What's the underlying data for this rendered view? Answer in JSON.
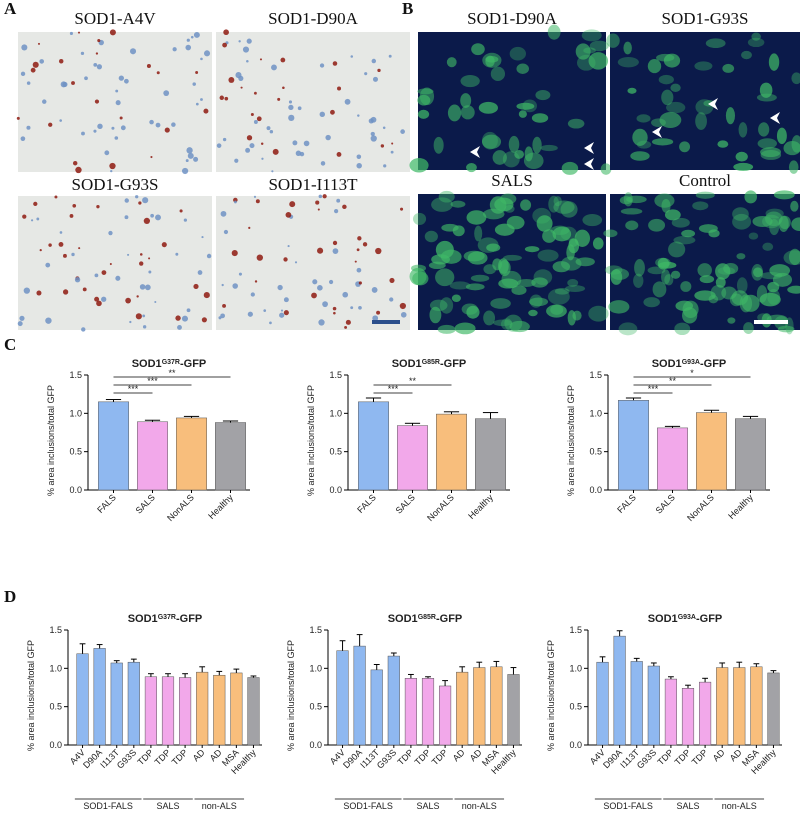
{
  "panels": [
    {
      "label": "A",
      "captions": [
        "SOD1-A4V",
        "SOD1-D90A",
        "SOD1-G93S",
        "SOD1-I113T"
      ]
    },
    {
      "label": "B",
      "captions": [
        "SOD1-D90A",
        "SOD1-G93S",
        "SALS",
        "Control"
      ]
    },
    {
      "label": "C"
    },
    {
      "label": "D"
    }
  ],
  "chart_data": [
    {
      "type": "bar",
      "title": [
        "SOD1",
        "G37R",
        "-GFP"
      ],
      "ylabel": "% area inclusions/total GFP",
      "categories": [
        "FALS",
        "SALS",
        "NonALS",
        "Healthy"
      ],
      "values": [
        1.15,
        0.89,
        0.94,
        0.88
      ],
      "errors": [
        0.03,
        0.02,
        0.02,
        0.02
      ],
      "colors": [
        "#8fb8f0",
        "#f2a8ea",
        "#f8be7c",
        "#a2a2a6"
      ],
      "ylim": [
        0,
        1.5
      ],
      "yticks": [
        {
          "value": 0,
          "label": "0.0"
        },
        0.5,
        {
          "value": 1,
          "label": "1.0"
        },
        1.5
      ],
      "significance": [
        {
          "between": [
            0,
            1
          ],
          "label": "***"
        },
        {
          "between": [
            0,
            2
          ],
          "label": "***"
        },
        {
          "between": [
            0,
            3
          ],
          "label": "**"
        }
      ]
    },
    {
      "type": "bar",
      "title": [
        "SOD1",
        "G85R",
        "-GFP"
      ],
      "ylabel": "% area inclusions/total GFP",
      "categories": [
        "FALS",
        "SALS",
        "NonALS",
        "Healthy"
      ],
      "values": [
        1.15,
        0.84,
        0.99,
        0.93
      ],
      "errors": [
        0.05,
        0.03,
        0.03,
        0.08
      ],
      "colors": [
        "#8fb8f0",
        "#f2a8ea",
        "#f8be7c",
        "#a2a2a6"
      ],
      "ylim": [
        0,
        1.5
      ],
      "yticks": [
        {
          "value": 0,
          "label": "0.0"
        },
        0.5,
        {
          "value": 1,
          "label": "1.0"
        },
        1.5
      ],
      "significance": [
        {
          "between": [
            0,
            1
          ],
          "label": "***"
        },
        {
          "between": [
            0,
            2
          ],
          "label": "**"
        }
      ]
    },
    {
      "type": "bar",
      "title": [
        "SOD1",
        "G93A",
        "-GFP"
      ],
      "ylabel": "% area inclusions/total GFP",
      "categories": [
        "FALS",
        "SALS",
        "NonALS",
        "Healthy"
      ],
      "values": [
        1.17,
        0.81,
        1.01,
        0.93
      ],
      "errors": [
        0.03,
        0.02,
        0.03,
        0.03
      ],
      "colors": [
        "#8fb8f0",
        "#f2a8ea",
        "#f8be7c",
        "#a2a2a6"
      ],
      "ylim": [
        0,
        1.5
      ],
      "yticks": [
        {
          "value": 0,
          "label": "0.0"
        },
        0.5,
        {
          "value": 1,
          "label": "1.0"
        },
        1.5
      ],
      "significance": [
        {
          "between": [
            0,
            1
          ],
          "label": "***"
        },
        {
          "between": [
            0,
            2
          ],
          "label": "**"
        },
        {
          "between": [
            0,
            3
          ],
          "label": "*"
        }
      ]
    },
    {
      "type": "bar",
      "title": [
        "SOD1",
        "G37R",
        "-GFP"
      ],
      "ylabel": "% area inclusions/total GFP",
      "categories": [
        "A4V",
        "D90A",
        "I113T",
        "G93S",
        "TDP",
        "TDP",
        "TDP",
        "AD",
        "AD",
        "MSA",
        "Healthy"
      ],
      "values": [
        1.19,
        1.26,
        1.07,
        1.08,
        0.89,
        0.89,
        0.88,
        0.95,
        0.91,
        0.94,
        0.88
      ],
      "errors": [
        0.13,
        0.05,
        0.03,
        0.04,
        0.04,
        0.04,
        0.05,
        0.07,
        0.05,
        0.05,
        0.02
      ],
      "colors": [
        "#8fb8f0",
        "#8fb8f0",
        "#8fb8f0",
        "#8fb8f0",
        "#f2a8ea",
        "#f2a8ea",
        "#f2a8ea",
        "#f8be7c",
        "#f8be7c",
        "#f8be7c",
        "#a2a2a6"
      ],
      "ylim": [
        0,
        1.5
      ],
      "yticks": [
        {
          "value": 0,
          "label": "0.0"
        },
        0.5,
        {
          "value": 1,
          "label": "1.0"
        },
        1.5
      ],
      "groups": [
        {
          "label": "SOD1-FALS",
          "span": [
            0,
            3
          ]
        },
        {
          "label": "SALS",
          "span": [
            4,
            6
          ]
        },
        {
          "label": "non-ALS",
          "span": [
            7,
            9
          ]
        }
      ]
    },
    {
      "type": "bar",
      "title": [
        "SOD1",
        "G85R",
        "-GFP"
      ],
      "ylabel": "% area inclusions/total GFP",
      "categories": [
        "A4V",
        "D90A",
        "I113T",
        "G93S",
        "TDP",
        "TDP",
        "TDP",
        "AD",
        "AD",
        "MSA",
        "Healthy"
      ],
      "values": [
        1.23,
        1.29,
        0.98,
        1.16,
        0.87,
        0.87,
        0.77,
        0.95,
        1.01,
        1.02,
        0.92
      ],
      "errors": [
        0.13,
        0.15,
        0.07,
        0.04,
        0.05,
        0.02,
        0.07,
        0.07,
        0.07,
        0.07,
        0.09
      ],
      "colors": [
        "#8fb8f0",
        "#8fb8f0",
        "#8fb8f0",
        "#8fb8f0",
        "#f2a8ea",
        "#f2a8ea",
        "#f2a8ea",
        "#f8be7c",
        "#f8be7c",
        "#f8be7c",
        "#a2a2a6"
      ],
      "ylim": [
        0,
        1.5
      ],
      "yticks": [
        {
          "value": 0,
          "label": "0.0"
        },
        0.5,
        {
          "value": 1,
          "label": "1.0"
        },
        1.5
      ],
      "groups": [
        {
          "label": "SOD1-FALS",
          "span": [
            0,
            3
          ]
        },
        {
          "label": "SALS",
          "span": [
            4,
            6
          ]
        },
        {
          "label": "non-ALS",
          "span": [
            7,
            9
          ]
        }
      ]
    },
    {
      "type": "bar",
      "title": [
        "SOD1",
        "G93A",
        "-GFP"
      ],
      "ylabel": "% area inclusions/total GFP",
      "categories": [
        "A4V",
        "D90A",
        "I113T",
        "G93S",
        "TDP",
        "TDP",
        "TDP",
        "AD",
        "AD",
        "MSA",
        "Healthy"
      ],
      "values": [
        1.08,
        1.42,
        1.09,
        1.03,
        0.86,
        0.74,
        0.82,
        1.01,
        1.01,
        1.02,
        0.94
      ],
      "errors": [
        0.07,
        0.07,
        0.04,
        0.04,
        0.03,
        0.04,
        0.05,
        0.06,
        0.07,
        0.04,
        0.03
      ],
      "colors": [
        "#8fb8f0",
        "#8fb8f0",
        "#8fb8f0",
        "#8fb8f0",
        "#f2a8ea",
        "#f2a8ea",
        "#f2a8ea",
        "#f8be7c",
        "#f8be7c",
        "#f8be7c",
        "#a2a2a6"
      ],
      "ylim": [
        0,
        1.5
      ],
      "yticks": [
        {
          "value": 0,
          "label": "0.0"
        },
        0.5,
        {
          "value": 1,
          "label": "1.0"
        },
        1.5
      ],
      "groups": [
        {
          "label": "SOD1-FALS",
          "span": [
            0,
            3
          ]
        },
        {
          "label": "SALS",
          "span": [
            4,
            6
          ]
        },
        {
          "label": "non-ALS",
          "span": [
            7,
            9
          ]
        }
      ]
    }
  ]
}
